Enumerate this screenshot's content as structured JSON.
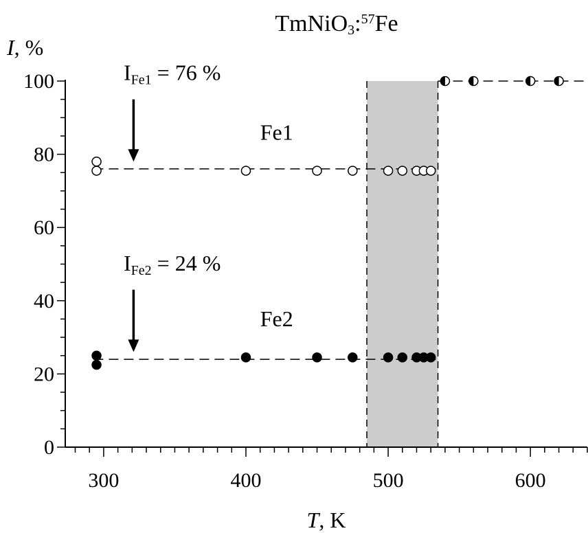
{
  "chart_data": {
    "type": "scatter",
    "title_main": "TmNiO",
    "title_sub": "3",
    "title_mid": ":",
    "title_sup": "57",
    "title_end": "Fe",
    "ylabel_var": "I",
    "ylabel_unit": ", %",
    "xlabel_var": "T",
    "xlabel_unit": ", K",
    "xlim": [
      273,
      640
    ],
    "ylim": [
      0,
      100
    ],
    "x_ticks": [
      300,
      400,
      500,
      600
    ],
    "y_ticks": [
      0,
      20,
      40,
      60,
      80,
      100
    ],
    "x_minor_step": 10,
    "y_minor_step": 5,
    "shaded_region": {
      "x": [
        485,
        535
      ],
      "color": "#cccccc"
    },
    "series": [
      {
        "name": "Fe1",
        "marker": "open-circle",
        "points": [
          [
            295,
            78
          ],
          [
            295,
            75.5
          ],
          [
            400,
            75.5
          ],
          [
            450,
            75.5
          ],
          [
            475,
            75.5
          ],
          [
            500,
            75.5
          ],
          [
            510,
            75.5
          ],
          [
            520,
            75.5
          ],
          [
            525,
            75.5
          ],
          [
            530,
            75.5
          ]
        ]
      },
      {
        "name": "Fe2",
        "marker": "filled-circle",
        "points": [
          [
            295,
            25
          ],
          [
            295,
            22.5
          ],
          [
            400,
            24.5
          ],
          [
            450,
            24.5
          ],
          [
            475,
            24.5
          ],
          [
            500,
            24.5
          ],
          [
            510,
            24.5
          ],
          [
            520,
            24.5
          ],
          [
            525,
            24.5
          ],
          [
            530,
            24.5
          ]
        ]
      },
      {
        "name": "",
        "marker": "half-filled-circle",
        "points": [
          [
            540,
            100
          ],
          [
            560,
            100
          ],
          [
            600,
            100
          ],
          [
            620,
            100
          ]
        ]
      }
    ],
    "reference_lines": [
      {
        "y": 76,
        "x_range": [
          293,
          535
        ]
      },
      {
        "y": 24,
        "x_range": [
          293,
          535
        ]
      },
      {
        "y": 100,
        "x_range": [
          535,
          640
        ]
      }
    ],
    "annotations": [
      {
        "main": "I",
        "sub": "Fe1",
        "rest": " = 76 %",
        "arrow_x": 321,
        "arrow_from_y": 95,
        "arrow_to_y": 78
      },
      {
        "main": "I",
        "sub": "Fe2",
        "rest": " = 24 %",
        "arrow_x": 321,
        "arrow_from_y": 43,
        "arrow_to_y": 26
      }
    ],
    "series_labels": [
      {
        "text": "Fe1",
        "x": 410,
        "y": 84
      },
      {
        "text": "Fe2",
        "x": 410,
        "y": 33
      }
    ]
  }
}
